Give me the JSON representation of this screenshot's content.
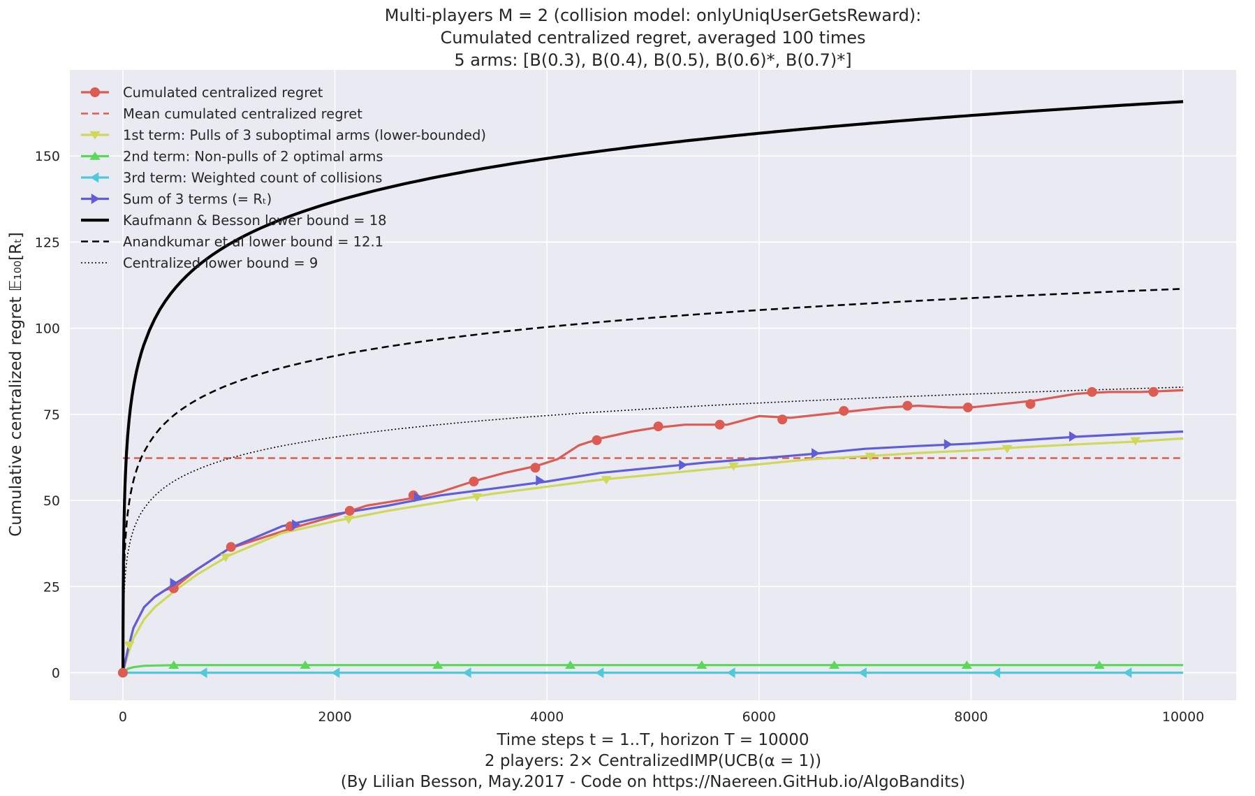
{
  "chart_data": {
    "type": "line",
    "title_lines": [
      "Multi-players M = 2 (collision model: onlyUniqUserGetsReward):",
      "Cumulated centralized regret, averaged 100 times",
      "5 arms: [B(0.3), B(0.4), B(0.5), B(0.6)*, B(0.7)*]"
    ],
    "xlabel_lines": [
      "Time steps t = 1..T, horizon T = 10000",
      "2 players: 2× CentralizedIMP(UCB(α = 1))",
      "(By Lilian Besson, May.2017 - Code on https://Naereen.GitHub.io/AlgoBandits)"
    ],
    "ylabel": "Cumulative centralized regret 𝔼₁₀₀[Rₜ]",
    "xlim": [
      -500,
      10500
    ],
    "ylim": [
      -8,
      175
    ],
    "x_ticks": [
      0,
      2000,
      4000,
      6000,
      8000,
      10000
    ],
    "x_tick_labels": [
      "0",
      "2000",
      "4000",
      "6000",
      "8000",
      "10000"
    ],
    "y_ticks": [
      0,
      25,
      50,
      75,
      100,
      125,
      150
    ],
    "y_tick_labels": [
      "0",
      "25",
      "50",
      "75",
      "100",
      "125",
      "150"
    ],
    "grid": true,
    "legend_position": "upper-left",
    "background_color": "#eaeaf2",
    "series": [
      {
        "name": "Cumulated centralized regret",
        "color": "#dc5b52",
        "style": "solid",
        "marker": "circle",
        "x": [
          0,
          50,
          100,
          200,
          300,
          400,
          500,
          700,
          1000,
          1300,
          1600,
          2000,
          2300,
          2500,
          2800,
          3000,
          3300,
          3600,
          3900,
          4100,
          4300,
          4500,
          4800,
          5000,
          5300,
          5700,
          6000,
          6300,
          6600,
          6900,
          7200,
          7500,
          7800,
          8000,
          8300,
          8600,
          9000,
          9300,
          9600,
          10000
        ],
        "values": [
          0,
          7,
          13,
          19,
          22,
          24,
          25,
          30,
          36,
          39,
          42,
          45.5,
          48.5,
          49.5,
          51,
          52.5,
          55.5,
          58,
          60,
          62,
          66,
          68,
          70,
          71,
          72,
          72,
          74.5,
          74,
          75,
          76,
          77,
          77.5,
          77,
          77,
          78,
          79,
          81,
          81.5,
          81.5,
          82
        ],
        "marker_x": [
          0,
          480,
          1020,
          1580,
          2140,
          2740,
          3310,
          3890,
          4470,
          5050,
          5630,
          6220,
          6800,
          7400,
          7970,
          8560,
          9140,
          9720
        ],
        "marker_y": [
          0,
          24.5,
          36.5,
          42.5,
          47,
          51.5,
          55.5,
          59.5,
          67.5,
          71.5,
          72,
          73.5,
          76,
          77.5,
          77,
          78,
          81.5,
          81.5
        ]
      },
      {
        "name": "Mean cumulated centralized regret",
        "color": "#dc5b52",
        "style": "dashed",
        "marker": "none",
        "x": [
          0,
          10000
        ],
        "values": [
          62.3,
          62.3
        ]
      },
      {
        "name": " 1st term: Pulls of 3 suboptimal arms (lower-bounded)",
        "color": "#d0d85a",
        "style": "solid",
        "marker": "triangle-down",
        "x": [
          0,
          50,
          100,
          200,
          300,
          500,
          700,
          1000,
          1500,
          2000,
          2500,
          3000,
          3500,
          4000,
          4500,
          5000,
          5500,
          6000,
          6500,
          7000,
          7500,
          8000,
          8500,
          9000,
          9500,
          10000
        ],
        "values": [
          0,
          5.5,
          10,
          15.5,
          19,
          24,
          28.5,
          34,
          40.5,
          44,
          47,
          49.5,
          52,
          54,
          56,
          57.5,
          59,
          60.5,
          62,
          62.8,
          63.8,
          64.5,
          65.5,
          66.3,
          67,
          68
        ],
        "marker_x": [
          60,
          970,
          2130,
          3340,
          4560,
          5760,
          7050,
          8340,
          9550
        ],
        "marker_y": [
          8,
          33.5,
          44.5,
          51,
          56,
          60,
          62.8,
          65,
          67.3
        ]
      },
      {
        "name": " 2nd term: Non-pulls of 2 optimal arms",
        "color": "#5bd85a",
        "style": "solid",
        "marker": "triangle-up",
        "x": [
          0,
          50,
          100,
          200,
          500,
          10000
        ],
        "values": [
          0,
          1.2,
          1.6,
          2,
          2.2,
          2.2
        ],
        "marker_x": [
          480,
          1720,
          2970,
          4220,
          5460,
          6710,
          7960,
          9210
        ],
        "marker_y": [
          2.2,
          2.2,
          2.2,
          2.2,
          2.2,
          2.2,
          2.2,
          2.2
        ]
      },
      {
        "name": " 3rd term: Weighted count of collisions",
        "color": "#52c9d9",
        "style": "solid",
        "marker": "triangle-left",
        "x": [
          0,
          10000
        ],
        "values": [
          0,
          0
        ],
        "marker_x": [
          760,
          2010,
          3250,
          4500,
          5740,
          6980,
          8240,
          9480
        ],
        "marker_y": [
          0,
          0,
          0,
          0,
          0,
          0,
          0,
          0
        ]
      },
      {
        "name": "Sum of 3 terms (= Rₜ)",
        "color": "#5f5ed8",
        "style": "solid",
        "marker": "triangle-right",
        "x": [
          0,
          50,
          100,
          200,
          300,
          500,
          700,
          1000,
          1500,
          2000,
          2500,
          3000,
          3500,
          4000,
          4500,
          5000,
          5500,
          6000,
          6500,
          7000,
          7500,
          8000,
          8500,
          9000,
          9500,
          10000
        ],
        "values": [
          0,
          7,
          13,
          19,
          22,
          26,
          30,
          36,
          42.5,
          46,
          48.5,
          51.5,
          53.5,
          55.5,
          58,
          59.5,
          61,
          62.2,
          63.5,
          65,
          65.8,
          66.5,
          67.5,
          68.5,
          69.3,
          70
        ],
        "marker_x": [
          480,
          1630,
          2780,
          3930,
          5280,
          6530,
          7780,
          8960
        ],
        "marker_y": [
          26,
          43,
          51,
          55.8,
          60.3,
          63.7,
          66.3,
          68.6
        ]
      },
      {
        "name": "Kaufmann & Besson lower bound = 18",
        "color": "#000000",
        "style": "solid-thick",
        "marker": "none",
        "fn": "log",
        "coef": 18,
        "intercept": 0
      },
      {
        "name": "Anandkumar et al lower bound = 12.1",
        "color": "#000000",
        "style": "dashed",
        "marker": "none",
        "fn": "log",
        "coef": 12.1,
        "intercept": 0
      },
      {
        "name": "Centralized lower bound = 9",
        "color": "#000000",
        "style": "dotted",
        "marker": "none",
        "fn": "log",
        "coef": 9,
        "intercept": 0
      }
    ]
  }
}
